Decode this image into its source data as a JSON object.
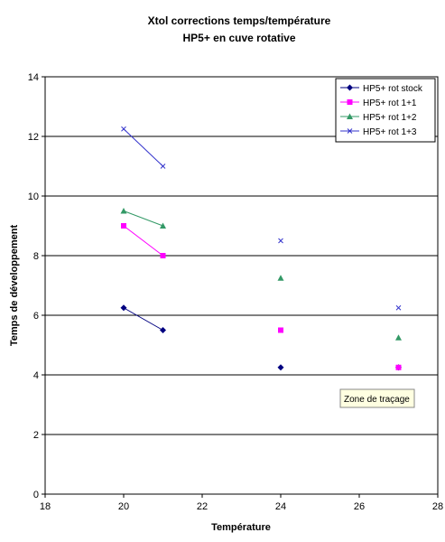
{
  "chart_data": {
    "type": "scatter",
    "title": "Xtol corrections temps/température",
    "subtitle": "HP5+ en cuve rotative",
    "xlabel": "Température",
    "ylabel": "Temps de développement",
    "xlim": [
      18,
      28
    ],
    "ylim": [
      0,
      14
    ],
    "xticks": [
      18,
      20,
      22,
      24,
      26,
      28
    ],
    "yticks": [
      0,
      2,
      4,
      6,
      8,
      10,
      12,
      14
    ],
    "grid": "horizontal",
    "legend_position": "top-right",
    "series": [
      {
        "name": "HP5+ rot stock",
        "color": "#000080",
        "marker": "diamond",
        "points": [
          [
            20,
            6.25
          ],
          [
            21,
            5.5
          ],
          [
            24,
            4.25
          ],
          [
            27,
            4.25
          ]
        ],
        "line_segment": [
          [
            20,
            6.25
          ],
          [
            21,
            5.5
          ]
        ]
      },
      {
        "name": "HP5+ rot 1+1",
        "color": "#ff00ff",
        "marker": "square",
        "points": [
          [
            20,
            9
          ],
          [
            21,
            8
          ],
          [
            24,
            5.5
          ],
          [
            27,
            4.25
          ]
        ],
        "line_segment": [
          [
            20,
            9
          ],
          [
            21,
            8
          ]
        ]
      },
      {
        "name": "HP5+ rot 1+2",
        "color": "#339966",
        "marker": "triangle",
        "points": [
          [
            20,
            9.5
          ],
          [
            21,
            9
          ],
          [
            24,
            7.25
          ],
          [
            27,
            5.25
          ]
        ],
        "line_segment": [
          [
            20,
            9.5
          ],
          [
            21,
            9
          ]
        ]
      },
      {
        "name": "HP5+ rot 1+3",
        "color": "#3333cc",
        "marker": "x",
        "points": [
          [
            20,
            12.25
          ],
          [
            21,
            11
          ],
          [
            24,
            8.5
          ],
          [
            27,
            6.25
          ]
        ],
        "line_segment": [
          [
            20,
            12.25
          ],
          [
            21,
            11
          ]
        ]
      }
    ]
  },
  "tooltip": {
    "text": "Zone de traçage"
  }
}
